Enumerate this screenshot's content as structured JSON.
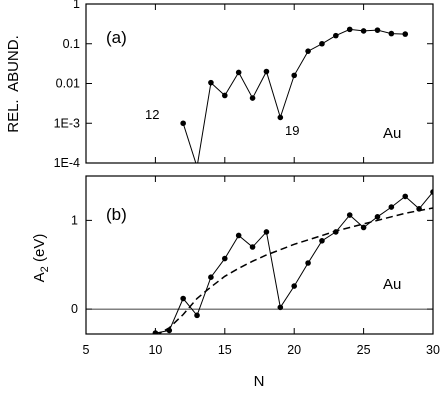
{
  "chart_data": [
    {
      "type": "line",
      "panel_label": "(a)",
      "element": "Au",
      "ylabel": "REL.  ABUND.",
      "yscale": "log",
      "ylim": [
        0.0001,
        1
      ],
      "xlim": [
        10,
        30
      ],
      "ytick_values": [
        0.0001,
        0.001,
        0.01,
        0.1,
        1
      ],
      "ytick_labels": [
        "1E-4",
        "1E-3",
        "0.01",
        "0.1",
        "1"
      ],
      "series": [
        {
          "x": [
            12,
            13,
            14,
            15,
            16,
            17,
            18,
            19,
            20,
            21,
            22,
            23,
            24,
            25,
            26,
            27,
            28
          ],
          "values": [
            0.001,
            8e-05,
            0.0105,
            0.005,
            0.019,
            0.0043,
            0.02,
            0.0014,
            0.016,
            0.065,
            0.1,
            0.16,
            0.23,
            0.21,
            0.22,
            0.18,
            0.175
          ],
          "markers": [
            true,
            false,
            true,
            true,
            true,
            true,
            true,
            true,
            true,
            true,
            true,
            true,
            true,
            true,
            true,
            true,
            true
          ]
        }
      ],
      "annotations": [
        {
          "text": "12",
          "x": 12,
          "y": 0.001
        },
        {
          "text": "19",
          "x": 19,
          "y": 0.0014
        }
      ]
    },
    {
      "type": "line",
      "panel_label": "(b)",
      "element": "Au",
      "ylabel": "A",
      "ylabel_subscript": "2",
      "ylabel_unit": " (eV)",
      "xlabel": "N",
      "xlim": [
        5,
        30
      ],
      "ylim": [
        -0.28,
        1.5
      ],
      "xtick_values": [
        5,
        10,
        15,
        20,
        25,
        30
      ],
      "xtick_labels": [
        "5",
        "10",
        "15",
        "20",
        "25",
        "30"
      ],
      "ytick_values": [
        0,
        1
      ],
      "ytick_labels": [
        "0",
        "1"
      ],
      "grid": false,
      "series": [
        {
          "x": [
            10,
            11,
            12,
            13,
            14,
            15,
            16,
            17,
            18,
            19,
            20,
            21,
            22,
            23,
            24,
            25,
            26,
            27,
            28,
            29,
            30
          ],
          "values": [
            -0.27,
            -0.24,
            0.12,
            -0.07,
            0.36,
            0.57,
            0.83,
            0.7,
            0.87,
            0.02,
            0.26,
            0.52,
            0.77,
            0.87,
            1.06,
            0.92,
            1.04,
            1.15,
            1.27,
            1.13,
            1.32
          ]
        },
        {
          "style": "dashed",
          "x": [
            10,
            11,
            12,
            13,
            14,
            15,
            16,
            17,
            18,
            19,
            20,
            21,
            22,
            23,
            24,
            25,
            26,
            27,
            28,
            29,
            30
          ],
          "values": [
            -0.3,
            -0.21,
            -0.06,
            0.12,
            0.25,
            0.37,
            0.46,
            0.54,
            0.61,
            0.67,
            0.73,
            0.78,
            0.83,
            0.88,
            0.92,
            0.96,
            1.0,
            1.04,
            1.08,
            1.11,
            1.14
          ]
        }
      ]
    }
  ]
}
